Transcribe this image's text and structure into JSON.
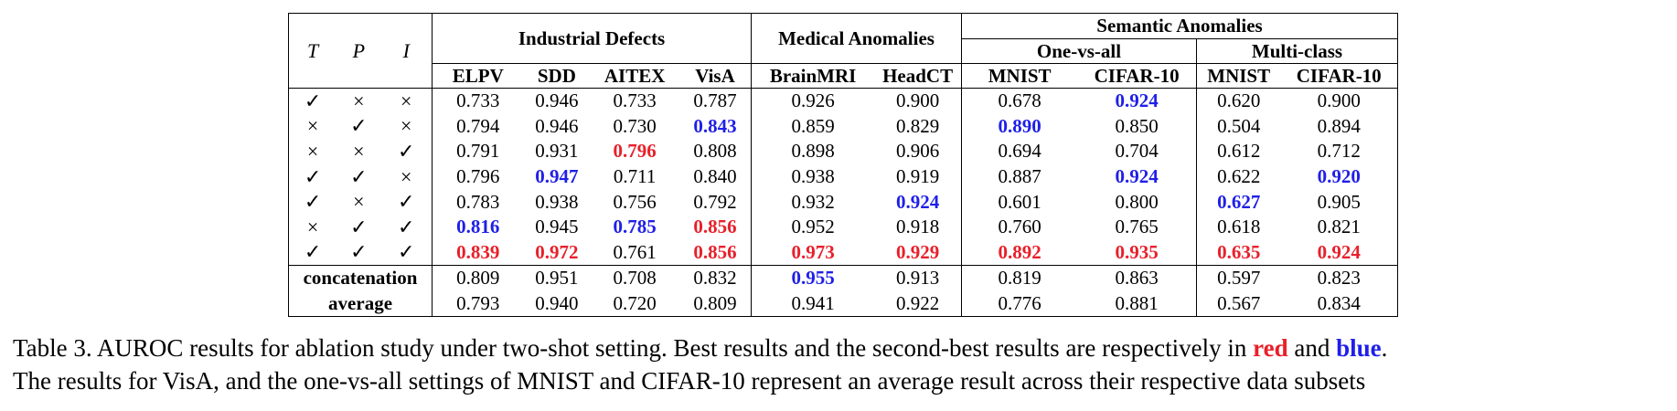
{
  "headers": {
    "tpi": [
      "T",
      "P",
      "I"
    ],
    "groups": {
      "industrial": "Industrial Defects",
      "medical": "Medical Anomalies",
      "semantic": "Semantic Anomalies",
      "one_vs_all": "One-vs-all",
      "multi_class": "Multi-class"
    },
    "columns": [
      "ELPV",
      "SDD",
      "AITEX",
      "VisA",
      "BrainMRI",
      "HeadCT",
      "MNIST",
      "CIFAR-10",
      "MNIST",
      "CIFAR-10"
    ]
  },
  "rows": [
    {
      "marks": [
        "✓",
        "×",
        "×"
      ],
      "values": [
        "0.733",
        "0.946",
        "0.733",
        "0.787",
        "0.926",
        "0.900",
        "0.678",
        "0.924",
        "0.620",
        "0.900"
      ],
      "styles": [
        "",
        "",
        "",
        "",
        "",
        "",
        "",
        "blue",
        "",
        ""
      ]
    },
    {
      "marks": [
        "×",
        "✓",
        "×"
      ],
      "values": [
        "0.794",
        "0.946",
        "0.730",
        "0.843",
        "0.859",
        "0.829",
        "0.890",
        "0.850",
        "0.504",
        "0.894"
      ],
      "styles": [
        "",
        "",
        "",
        "blue",
        "",
        "",
        "blue",
        "",
        "",
        ""
      ]
    },
    {
      "marks": [
        "×",
        "×",
        "✓"
      ],
      "values": [
        "0.791",
        "0.931",
        "0.796",
        "0.808",
        "0.898",
        "0.906",
        "0.694",
        "0.704",
        "0.612",
        "0.712"
      ],
      "styles": [
        "",
        "",
        "red",
        "",
        "",
        "",
        "",
        "",
        "",
        ""
      ]
    },
    {
      "marks": [
        "✓",
        "✓",
        "×"
      ],
      "values": [
        "0.796",
        "0.947",
        "0.711",
        "0.840",
        "0.938",
        "0.919",
        "0.887",
        "0.924",
        "0.622",
        "0.920"
      ],
      "styles": [
        "",
        "blue",
        "",
        "",
        "",
        "",
        "",
        "blue",
        "",
        "blue"
      ]
    },
    {
      "marks": [
        "✓",
        "×",
        "✓"
      ],
      "values": [
        "0.783",
        "0.938",
        "0.756",
        "0.792",
        "0.932",
        "0.924",
        "0.601",
        "0.800",
        "0.627",
        "0.905"
      ],
      "styles": [
        "",
        "",
        "",
        "",
        "",
        "blue",
        "",
        "",
        "blue",
        ""
      ]
    },
    {
      "marks": [
        "×",
        "✓",
        "✓"
      ],
      "values": [
        "0.816",
        "0.945",
        "0.785",
        "0.856",
        "0.952",
        "0.918",
        "0.760",
        "0.765",
        "0.618",
        "0.821"
      ],
      "styles": [
        "blue",
        "",
        "blue",
        "red",
        "",
        "",
        "",
        "",
        "",
        ""
      ]
    },
    {
      "marks": [
        "✓",
        "✓",
        "✓"
      ],
      "values": [
        "0.839",
        "0.972",
        "0.761",
        "0.856",
        "0.973",
        "0.929",
        "0.892",
        "0.935",
        "0.635",
        "0.924"
      ],
      "styles": [
        "red",
        "red",
        "",
        "red",
        "red",
        "red",
        "red",
        "red",
        "red",
        "red"
      ]
    }
  ],
  "summary_rows": [
    {
      "label": "concatenation",
      "values": [
        "0.809",
        "0.951",
        "0.708",
        "0.832",
        "0.955",
        "0.913",
        "0.819",
        "0.863",
        "0.597",
        "0.823"
      ],
      "styles": [
        "",
        "",
        "",
        "",
        "blue",
        "",
        "",
        "",
        "",
        ""
      ]
    },
    {
      "label": "average",
      "values": [
        "0.793",
        "0.940",
        "0.720",
        "0.809",
        "0.941",
        "0.922",
        "0.776",
        "0.881",
        "0.567",
        "0.834"
      ],
      "styles": [
        "",
        "",
        "",
        "",
        "",
        "",
        "",
        "",
        "",
        ""
      ]
    }
  ],
  "caption": {
    "line1_prefix": "Table 3. AUROC results for ablation study under two-shot setting. Best results and the second-best results are respectively in ",
    "red_word": "red",
    "and_word": " and ",
    "blue_word": "blue",
    "line1_end": ".",
    "line2": "The results for VisA, and the one-vs-all settings of MNIST and CIFAR-10 represent an average result across their respective data subsets"
  },
  "colors": {
    "best": "#e8202a",
    "second_best": "#1f1fe8"
  }
}
